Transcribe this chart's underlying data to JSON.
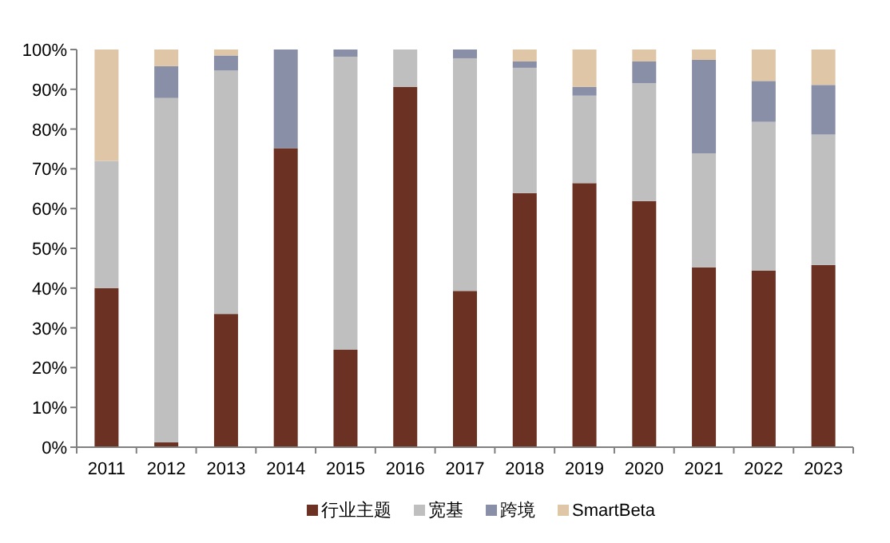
{
  "chart_data": {
    "type": "bar",
    "stacked": true,
    "legend": "bottom",
    "grid": false,
    "categories": [
      "2011",
      "2012",
      "2013",
      "2014",
      "2015",
      "2016",
      "2017",
      "2018",
      "2019",
      "2020",
      "2021",
      "2022",
      "2023"
    ],
    "ylim": [
      0,
      100
    ],
    "yticks": [
      {
        "value": 0,
        "label": "0%"
      },
      {
        "value": 10,
        "label": "10%"
      },
      {
        "value": 20,
        "label": "20%"
      },
      {
        "value": 30,
        "label": "30%"
      },
      {
        "value": 40,
        "label": "40%"
      },
      {
        "value": 50,
        "label": "50%"
      },
      {
        "value": 60,
        "label": "60%"
      },
      {
        "value": 70,
        "label": "70%"
      },
      {
        "value": 80,
        "label": "80%"
      },
      {
        "value": 90,
        "label": "90%"
      },
      {
        "value": 100,
        "label": "100%"
      }
    ],
    "series": [
      {
        "name": "行业主题",
        "color": "#6b3122",
        "values": [
          40,
          1.2,
          33.5,
          75.2,
          24.5,
          90.6,
          39.3,
          63.9,
          66.4,
          61.9,
          45.2,
          44.4,
          45.8
        ]
      },
      {
        "name": "宽基",
        "color": "#bfbfbf",
        "values": [
          32,
          86.6,
          61.2,
          0,
          73.7,
          9.4,
          58.5,
          31.5,
          22,
          29.6,
          28.7,
          37.4,
          32.8
        ]
      },
      {
        "name": "跨境",
        "color": "#8a8fa8",
        "values": [
          0,
          8,
          3.8,
          24.8,
          1.8,
          0,
          2.2,
          1.6,
          2.2,
          5.5,
          23.5,
          10.3,
          12.5
        ]
      },
      {
        "name": "SmartBeta",
        "color": "#dfc6a6",
        "values": [
          28,
          4.2,
          1.5,
          0,
          0,
          0,
          0,
          3,
          9.4,
          3,
          2.6,
          7.9,
          8.9
        ]
      }
    ]
  }
}
